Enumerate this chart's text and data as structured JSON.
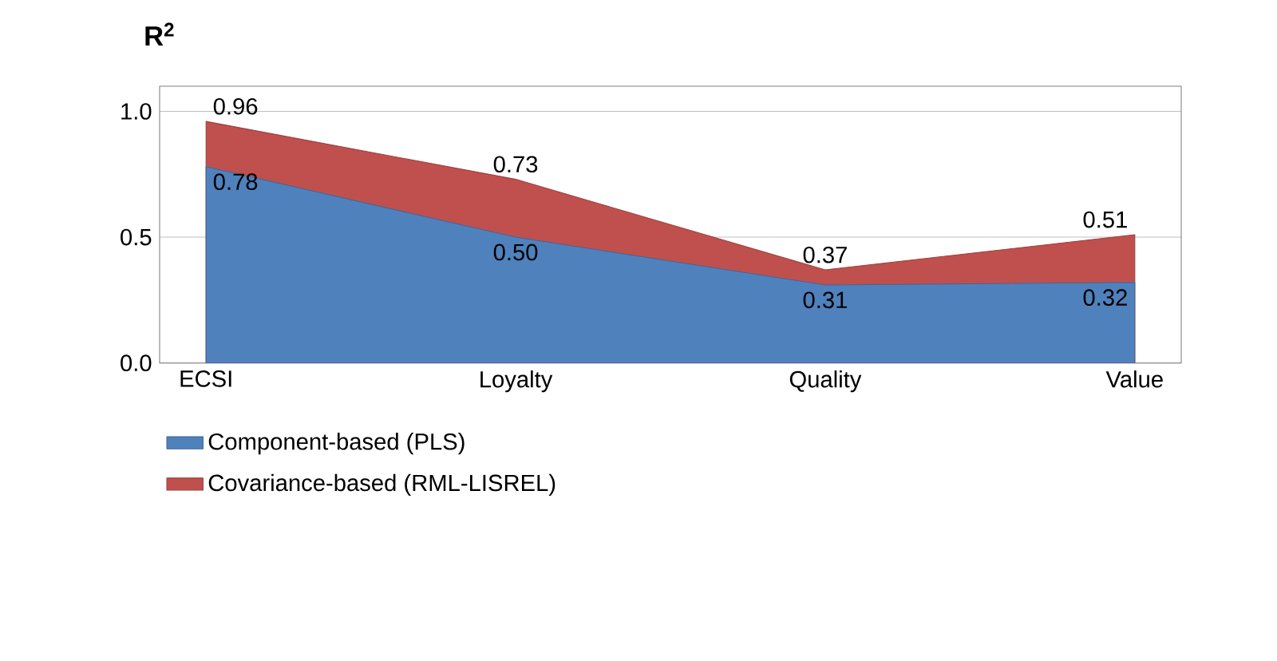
{
  "chart_data": {
    "type": "area",
    "ylabel": "R$^{2}$",
    "categories": [
      "ECSI",
      "Loyalty",
      "Quality",
      "Value"
    ],
    "series": [
      {
        "name": "Component-based (PLS)",
        "color": "#4f81bd",
        "values": [
          0.78,
          0.5,
          0.31,
          0.32
        ],
        "value_labels": [
          "0.78",
          "0.50",
          "0.31",
          "0.32"
        ]
      },
      {
        "name": "Covariance-based (RML-LISREL)",
        "color": "#c0504d",
        "values": [
          0.96,
          0.73,
          0.37,
          0.51
        ],
        "value_labels": [
          "0.96",
          "0.73",
          "0.37",
          "0.51"
        ]
      }
    ],
    "ylim": [
      0,
      1.1
    ],
    "yticks": [
      {
        "value": 0,
        "label": "0.0"
      },
      {
        "value": 0.5,
        "label": "0.5"
      },
      {
        "value": 1.0,
        "label": "1.0"
      }
    ],
    "grid": "y",
    "legend": "bottom left"
  }
}
